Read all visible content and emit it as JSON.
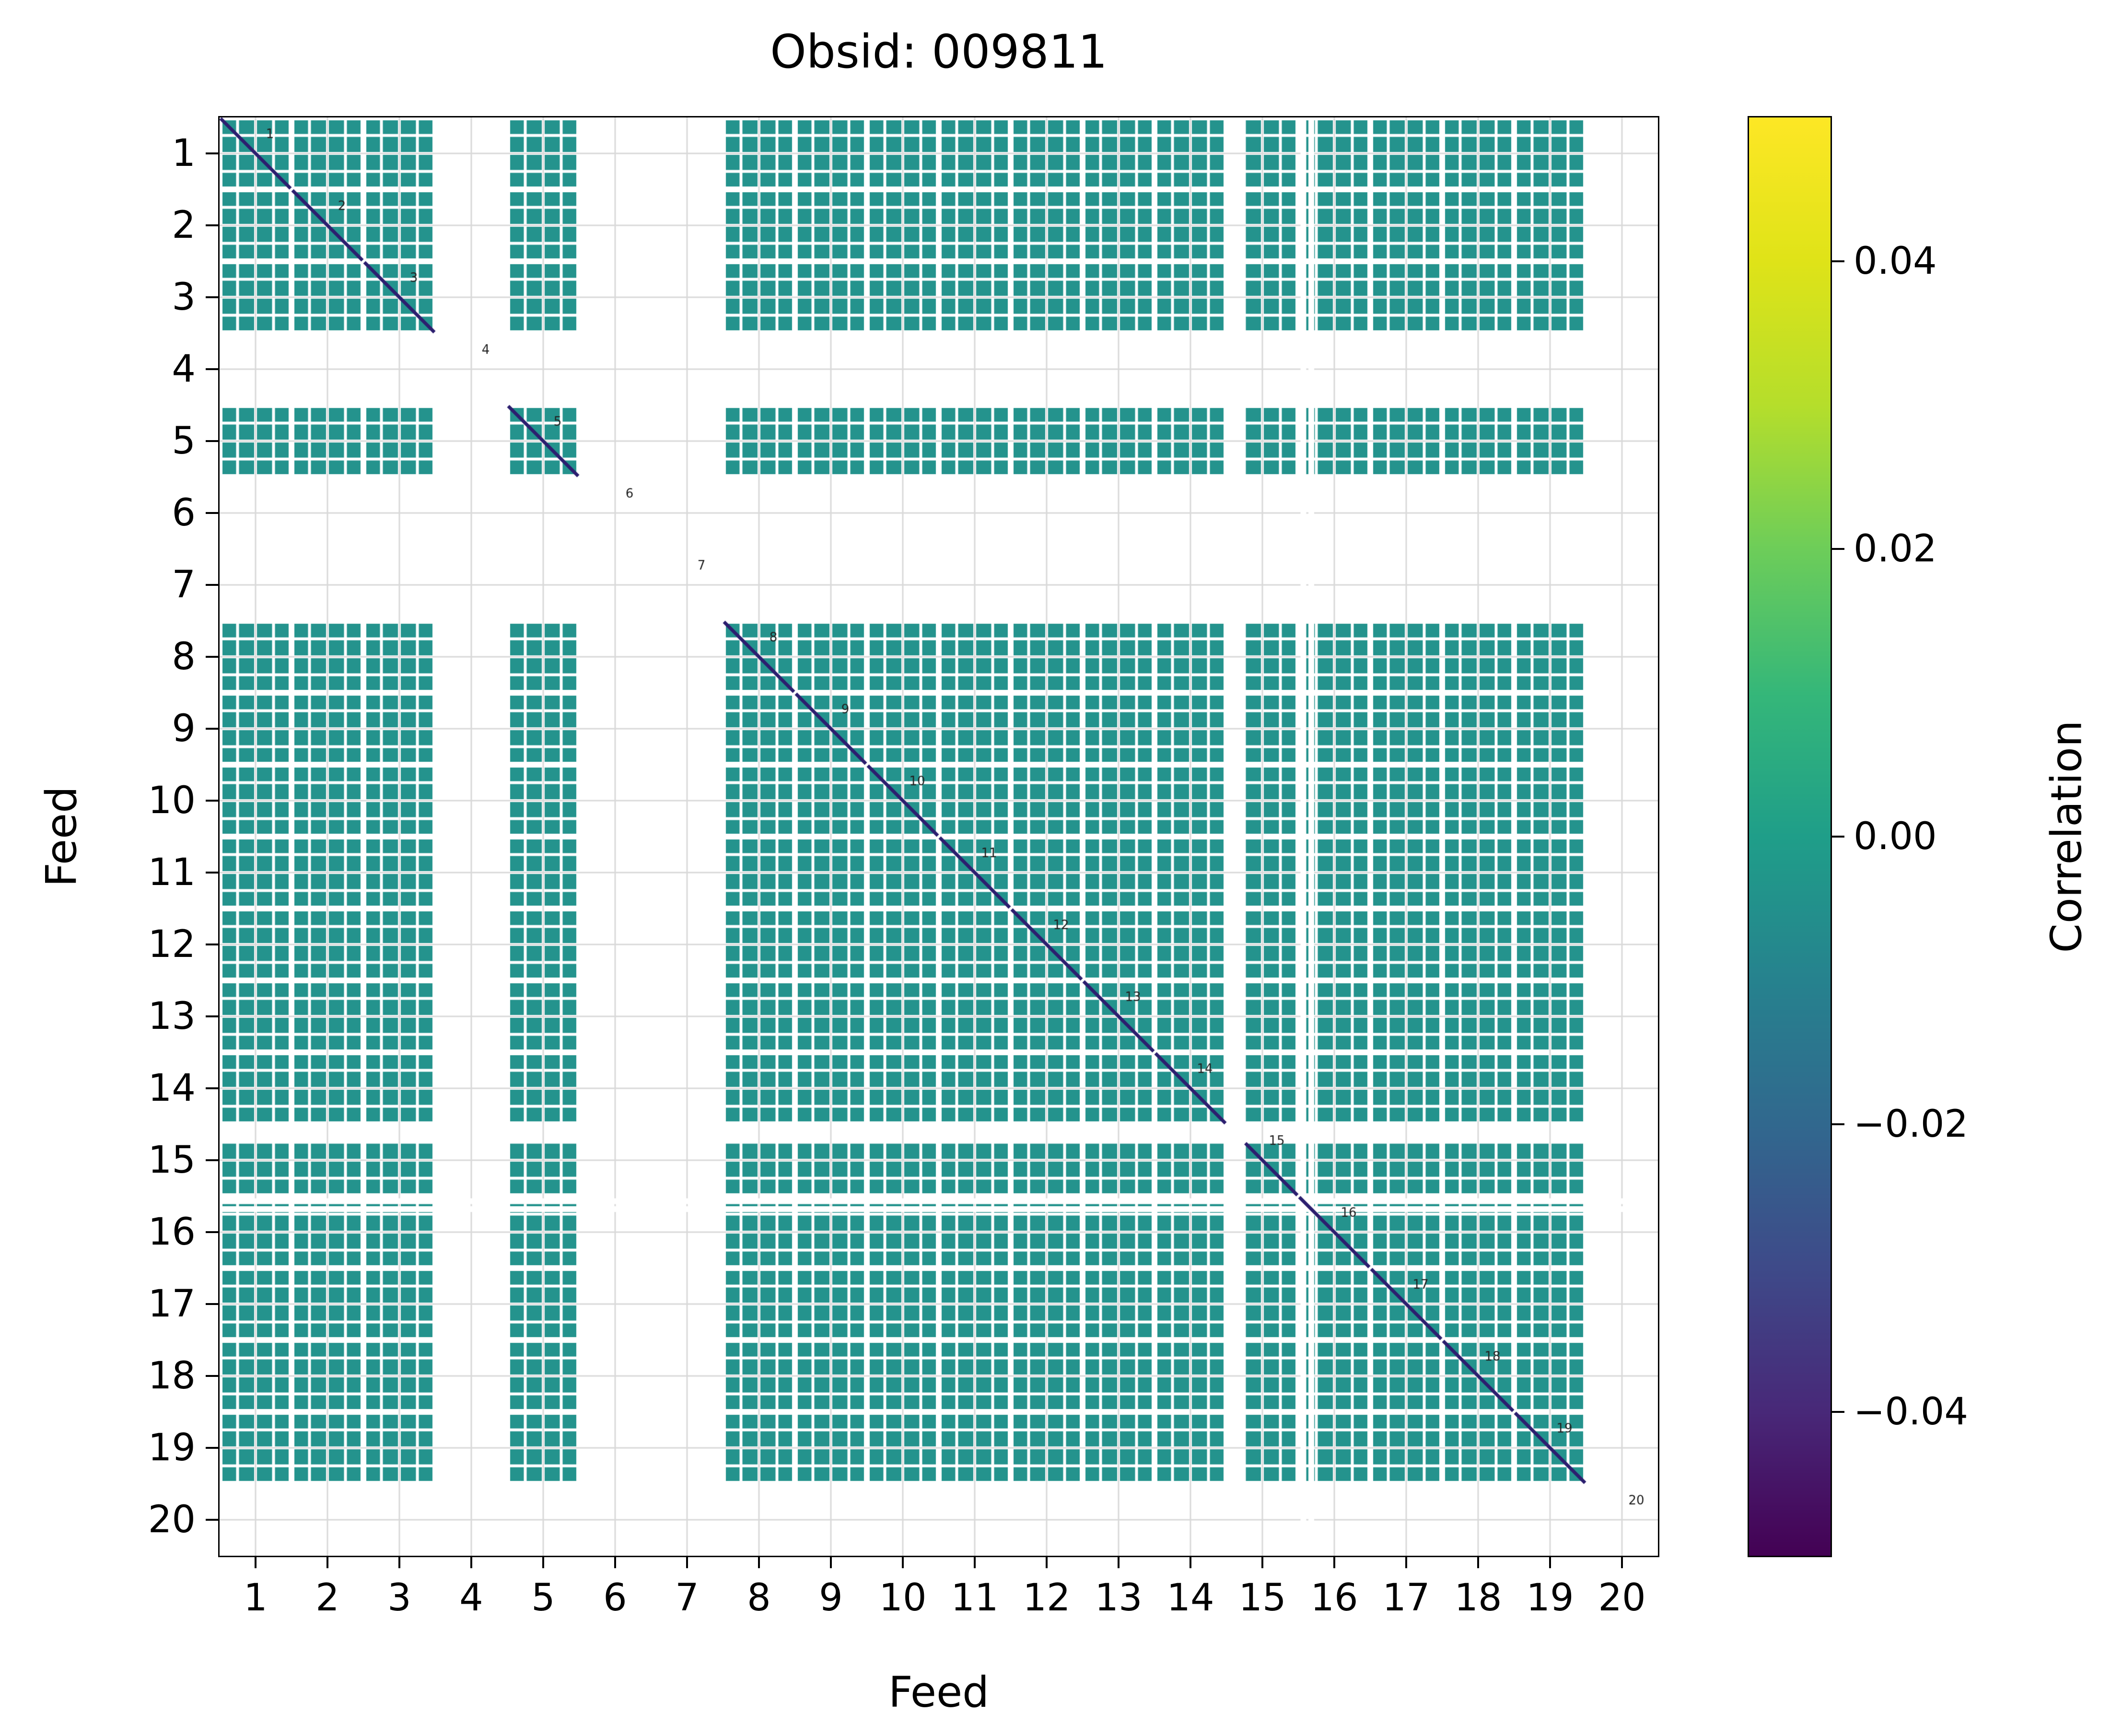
{
  "title": "Obsid: 009811",
  "axes": {
    "xlabel": "Feed",
    "ylabel": "Feed"
  },
  "colorbar": {
    "label": "Correlation",
    "colormap": "viridis",
    "vmin": -0.05,
    "vmax": 0.05,
    "tick_labels": [
      "0.04",
      "0.02",
      "0.00",
      "−0.02",
      "−0.04"
    ],
    "tick_values": [
      0.04,
      0.02,
      0.0,
      -0.02,
      -0.04
    ]
  },
  "chart_data": {
    "type": "heatmap",
    "title": "Obsid: 009811",
    "xlabel": "Feed",
    "ylabel": "Feed",
    "x_ticks": [
      1,
      2,
      3,
      4,
      5,
      6,
      7,
      8,
      9,
      10,
      11,
      12,
      13,
      14,
      15,
      16,
      17,
      18,
      19,
      20
    ],
    "y_ticks": [
      1,
      2,
      3,
      4,
      5,
      6,
      7,
      8,
      9,
      10,
      11,
      12,
      13,
      14,
      15,
      16,
      17,
      18,
      19,
      20
    ],
    "subbands_per_feed": 4,
    "present_feeds": [
      1,
      2,
      3,
      5,
      8,
      9,
      10,
      11,
      12,
      13,
      14,
      15,
      16,
      17,
      18,
      19
    ],
    "missing_feeds": [
      4,
      6,
      7,
      20
    ],
    "missing_subbands": [
      {
        "feed": 15,
        "subband": 1
      }
    ],
    "partial_missing_channel_strips": [
      {
        "feed": 16,
        "fraction_into_feed": 0.07
      },
      {
        "feed": 16,
        "fraction_into_feed": 0.18
      }
    ],
    "diagonal_labels": [
      1,
      2,
      3,
      4,
      5,
      6,
      7,
      8,
      9,
      10,
      11,
      12,
      13,
      14,
      15,
      16,
      17,
      18,
      19,
      20
    ],
    "offdiagonal_value_approx": 0.005,
    "diagonal_value": "low end of colormap (dark diagonal line within each present feed block)",
    "vmin": -0.05,
    "vmax": 0.05,
    "grid": true,
    "legend_position": "colorbar-right",
    "colors": {
      "cell": "#24938d",
      "diagonal_line": "#2c1f6f",
      "grid_line": "#d9d9d9",
      "background": "#ffffff",
      "diagonal_label_text": "#222222"
    }
  }
}
